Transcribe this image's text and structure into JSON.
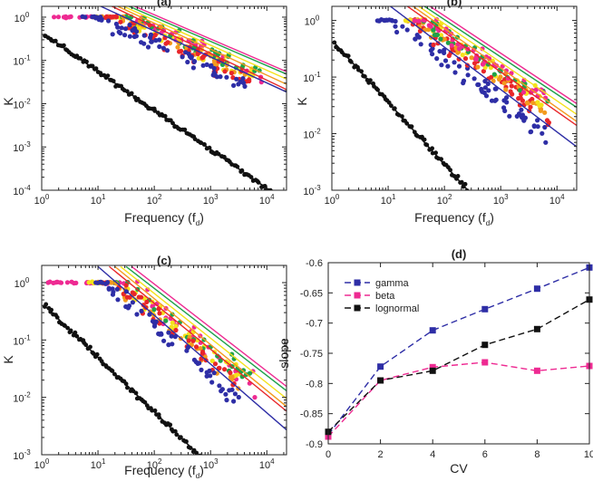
{
  "figure": {
    "colors": {
      "blue": "#2e2ea6",
      "red": "#e8262a",
      "pink": "#ee2a92",
      "yellow": "#f4e21b",
      "orange": "#f39a1d",
      "green": "#1fa24a",
      "black": "#111111"
    },
    "panels": [
      {
        "title": "(a)",
        "xlabel": "Frequency (f",
        "xsub": "d",
        "xlabel_close": ")",
        "ylabel": "K",
        "xdecades": [
          0,
          1,
          2,
          3,
          4
        ],
        "ydecades": [
          -4,
          -3,
          -2,
          -1,
          0
        ],
        "xrange_log": [
          0,
          4.35
        ],
        "yrange_log": [
          -4,
          0.25
        ],
        "black": {
          "x0": 0.05,
          "y0": -0.4,
          "slope": -0.9,
          "x1": 4.1,
          "n": 120
        },
        "fits": [
          {
            "color": "blue",
            "x0": 1.0,
            "y0": 0.28,
            "slope": -0.6,
            "x1": 4.35
          },
          {
            "color": "red",
            "x0": 1.2,
            "y0": 0.28,
            "slope": -0.62,
            "x1": 4.35
          },
          {
            "color": "orange",
            "x0": 1.3,
            "y0": 0.28,
            "slope": -0.6,
            "x1": 4.35
          },
          {
            "color": "yellow",
            "x0": 1.4,
            "y0": 0.28,
            "slope": -0.58,
            "x1": 4.35
          },
          {
            "color": "green",
            "x0": 1.5,
            "y0": 0.28,
            "slope": -0.56,
            "x1": 4.35
          },
          {
            "color": "pink",
            "x0": 1.6,
            "y0": 0.28,
            "slope": -0.56,
            "x1": 4.35
          }
        ],
        "clouds": [
          {
            "color": "pink",
            "flat_from": 0.05,
            "knee": 1.6,
            "slope": -0.6,
            "x1": 4.0,
            "n": 70
          },
          {
            "color": "yellow",
            "flat_from": 0.9,
            "knee": 1.5,
            "slope": -0.6,
            "x1": 3.8,
            "n": 45
          },
          {
            "color": "green",
            "flat_from": 1.0,
            "knee": 1.5,
            "slope": -0.55,
            "x1": 3.9,
            "n": 40
          },
          {
            "color": "orange",
            "flat_from": 1.0,
            "knee": 1.4,
            "slope": -0.6,
            "x1": 3.7,
            "n": 35
          },
          {
            "color": "red",
            "flat_from": 1.1,
            "knee": 1.3,
            "slope": -0.62,
            "x1": 3.8,
            "n": 50
          },
          {
            "color": "blue",
            "flat_from": 0.7,
            "knee": 1.0,
            "slope": -0.6,
            "x1": 3.7,
            "n": 70
          }
        ]
      },
      {
        "title": "(b)",
        "xlabel": "Frequency (f",
        "xsub": "d",
        "xlabel_close": ")",
        "ylabel": "K",
        "xdecades": [
          0,
          1,
          2,
          3,
          4
        ],
        "ydecades": [
          -3,
          -2,
          -1,
          0
        ],
        "xrange_log": [
          0,
          4.35
        ],
        "yrange_log": [
          -3,
          0.25
        ],
        "black": {
          "x0": 0.05,
          "y0": -0.4,
          "slope": -1.1,
          "x1": 3.05,
          "n": 90
        },
        "fits": [
          {
            "color": "blue",
            "x0": 1.0,
            "y0": 0.28,
            "slope": -0.75,
            "x1": 4.35
          },
          {
            "color": "red",
            "x0": 1.3,
            "y0": 0.28,
            "slope": -0.7,
            "x1": 4.35
          },
          {
            "color": "orange",
            "x0": 1.4,
            "y0": 0.28,
            "slope": -0.7,
            "x1": 4.35
          },
          {
            "color": "yellow",
            "x0": 1.5,
            "y0": 0.28,
            "slope": -0.68,
            "x1": 4.35
          },
          {
            "color": "green",
            "x0": 1.6,
            "y0": 0.28,
            "slope": -0.66,
            "x1": 4.35
          },
          {
            "color": "pink",
            "x0": 1.7,
            "y0": 0.28,
            "slope": -0.66,
            "x1": 4.35
          }
        ],
        "clouds": [
          {
            "color": "blue",
            "flat_from": 0.8,
            "knee": 1.1,
            "slope": -0.75,
            "x1": 3.8,
            "n": 80
          },
          {
            "color": "red",
            "flat_from": 1.2,
            "knee": 1.4,
            "slope": -0.7,
            "x1": 3.9,
            "n": 60
          },
          {
            "color": "orange",
            "flat_from": 1.3,
            "knee": 1.5,
            "slope": -0.7,
            "x1": 3.8,
            "n": 40
          },
          {
            "color": "yellow",
            "flat_from": 1.3,
            "knee": 1.6,
            "slope": -0.68,
            "x1": 3.8,
            "n": 40
          },
          {
            "color": "green",
            "flat_from": 1.4,
            "knee": 1.6,
            "slope": -0.66,
            "x1": 3.9,
            "n": 35
          },
          {
            "color": "pink",
            "flat_from": 1.4,
            "knee": 1.7,
            "slope": -0.66,
            "x1": 3.9,
            "n": 45
          }
        ]
      },
      {
        "title": "(c)",
        "xlabel": "Frequency (f",
        "xsub": "d",
        "xlabel_close": ")",
        "ylabel": "K",
        "xdecades": [
          0,
          1,
          2,
          3,
          4
        ],
        "ydecades": [
          -3,
          -2,
          -1,
          0
        ],
        "xrange_log": [
          0,
          4.35
        ],
        "yrange_log": [
          -3,
          0.3
        ],
        "black": {
          "x0": 0.05,
          "y0": -0.4,
          "slope": -0.95,
          "x1": 3.05,
          "n": 90
        },
        "fits": [
          {
            "color": "blue",
            "x0": 1.0,
            "y0": 0.28,
            "slope": -0.85,
            "x1": 4.35
          },
          {
            "color": "red",
            "x0": 1.2,
            "y0": 0.28,
            "slope": -0.8,
            "x1": 4.35
          },
          {
            "color": "orange",
            "x0": 1.3,
            "y0": 0.28,
            "slope": -0.8,
            "x1": 4.35
          },
          {
            "color": "yellow",
            "x0": 1.4,
            "y0": 0.28,
            "slope": -0.78,
            "x1": 4.35
          },
          {
            "color": "green",
            "x0": 1.5,
            "y0": 0.28,
            "slope": -0.76,
            "x1": 4.35
          },
          {
            "color": "pink",
            "x0": 1.6,
            "y0": 0.28,
            "slope": -0.76,
            "x1": 4.35
          }
        ],
        "clouds": [
          {
            "color": "pink",
            "flat_from": 0.05,
            "knee": 1.5,
            "slope": -0.78,
            "x1": 3.8,
            "n": 60
          },
          {
            "color": "yellow",
            "flat_from": 0.8,
            "knee": 1.4,
            "slope": -0.78,
            "x1": 3.6,
            "n": 40
          },
          {
            "color": "green",
            "flat_from": 1.0,
            "knee": 1.5,
            "slope": -0.75,
            "x1": 3.7,
            "n": 30
          },
          {
            "color": "orange",
            "flat_from": 1.0,
            "knee": 1.3,
            "slope": -0.8,
            "x1": 3.5,
            "n": 30
          },
          {
            "color": "red",
            "flat_from": 1.0,
            "knee": 1.3,
            "slope": -0.8,
            "x1": 3.5,
            "n": 40
          },
          {
            "color": "blue",
            "flat_from": 0.9,
            "knee": 1.1,
            "slope": -0.85,
            "x1": 3.6,
            "n": 60
          }
        ]
      }
    ]
  },
  "chart_data": {
    "type": "line",
    "title": "(d)",
    "xlabel": "CV",
    "ylabel": "slope",
    "xlim": [
      0,
      10
    ],
    "ylim": [
      -0.9,
      -0.6
    ],
    "xticks": [
      0,
      2,
      4,
      6,
      8,
      10
    ],
    "yticks": [
      -0.9,
      -0.85,
      -0.8,
      -0.75,
      -0.7,
      -0.65,
      -0.6
    ],
    "ytick_labels": [
      "-0.9",
      "-0.85",
      "-0.8",
      "-0.75",
      "-0.7",
      "-0.65",
      "-0.6"
    ],
    "legend_position": "top-left",
    "series": [
      {
        "name": "gamma",
        "color": "#2e2ea6",
        "x": [
          0,
          2,
          4,
          6,
          8,
          10
        ],
        "values": [
          -0.885,
          -0.772,
          -0.712,
          -0.677,
          -0.643,
          -0.608
        ]
      },
      {
        "name": "beta",
        "color": "#ee2a92",
        "x": [
          0,
          2,
          4,
          6,
          8,
          10
        ],
        "values": [
          -0.888,
          -0.795,
          -0.773,
          -0.765,
          -0.779,
          -0.771
        ]
      },
      {
        "name": "lognormal",
        "color": "#111111",
        "x": [
          0,
          2,
          4,
          6,
          8,
          10
        ],
        "values": [
          -0.88,
          -0.795,
          -0.779,
          -0.736,
          -0.71,
          -0.661
        ]
      }
    ]
  }
}
